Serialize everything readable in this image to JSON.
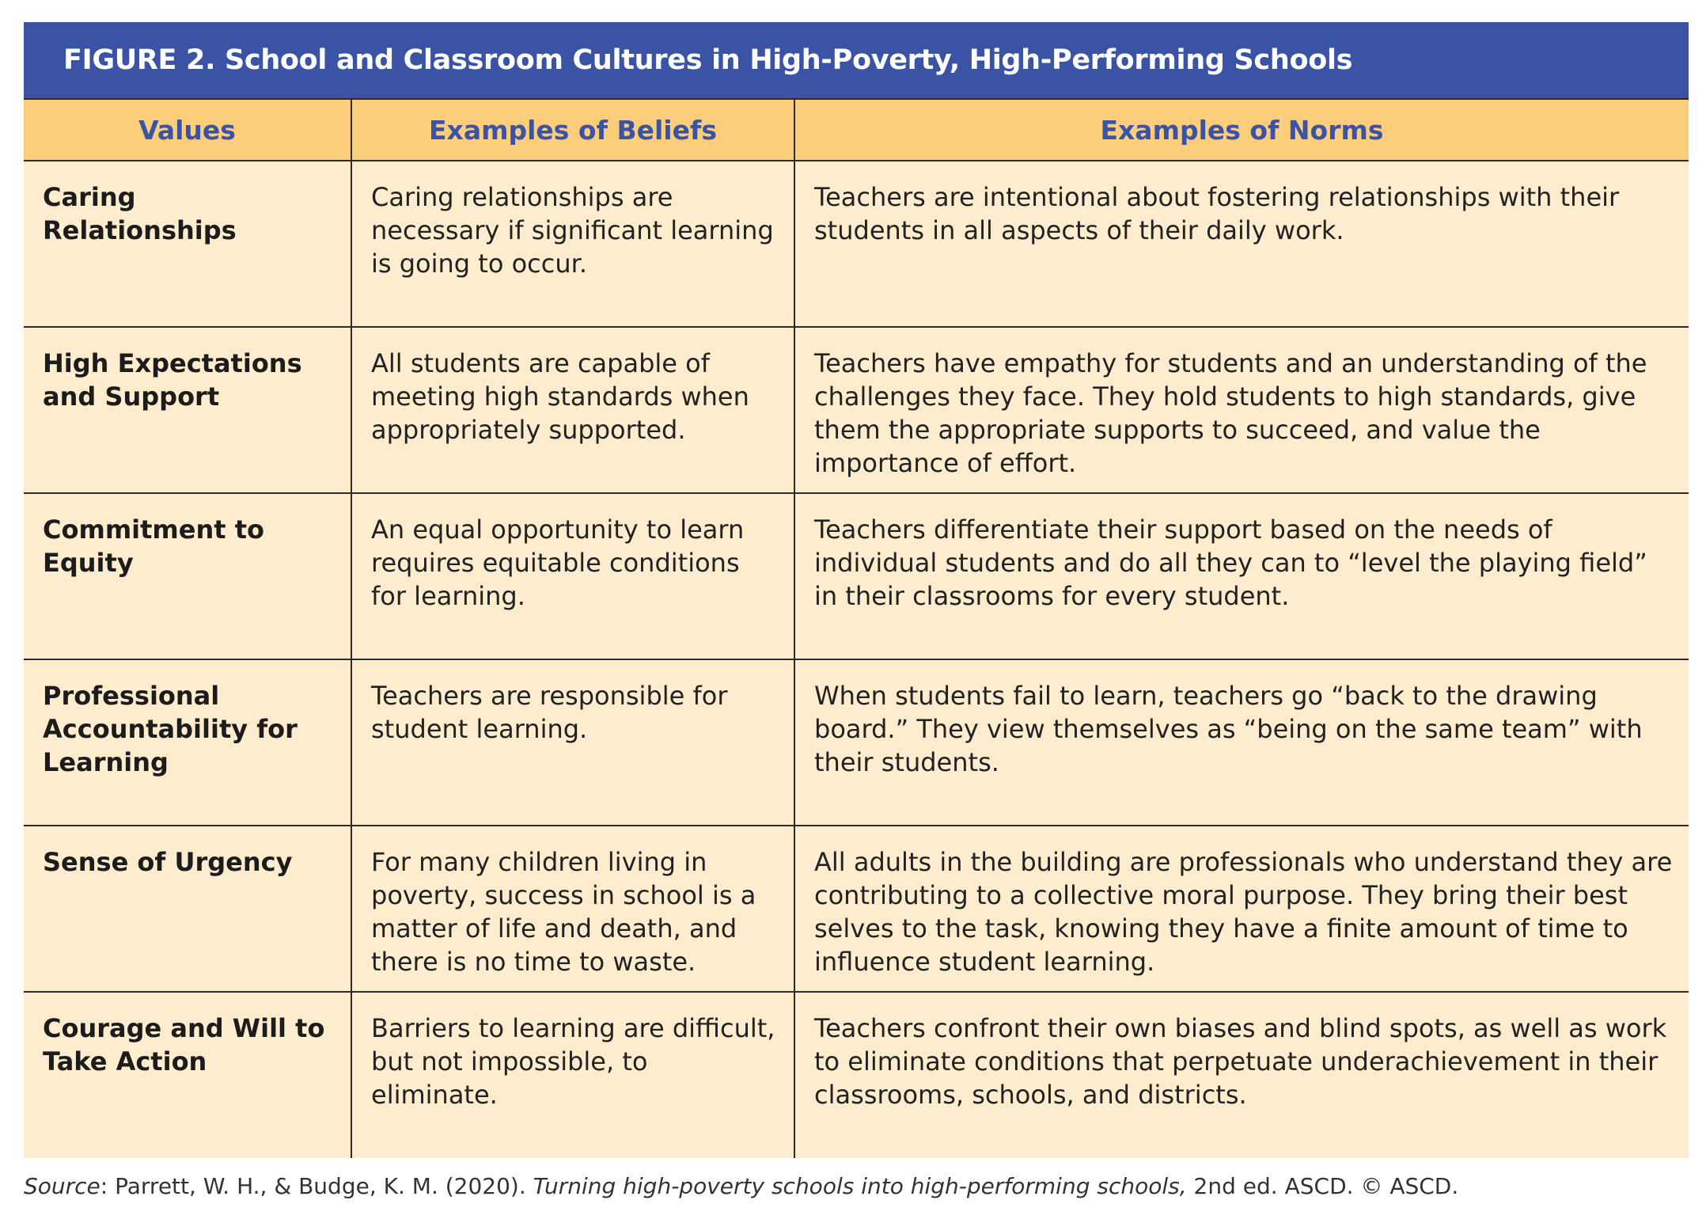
{
  "figure": {
    "title": "FIGURE 2. School and Classroom Cultures in High-Poverty, High-Performing Schools",
    "headers": [
      "Values",
      "Examples of Beliefs",
      "Examples of Norms"
    ],
    "rows": [
      {
        "value": "Caring Relationships",
        "belief": "Caring relationships are necessary if significant learning is going to occur.",
        "norm": "Teachers are intentional about fostering relationships with their students in all aspects of their daily work."
      },
      {
        "value": "High Expectations and Support",
        "belief": "All students are capable of meeting high standards when appropriately supported.",
        "norm": "Teachers have empathy for students and an understanding of the challenges they face. They hold students to high standards, give them the appropriate supports to succeed, and value the importance of effort."
      },
      {
        "value": "Commitment to Equity",
        "belief": "An equal opportunity to learn requires equitable conditions for learning.",
        "norm": "Teachers differentiate their support based on the needs of individual students and do all they can to “level the playing field” in their classrooms for every student."
      },
      {
        "value": "Professional Accountability for Learning",
        "belief": "Teachers are responsible for student learning.",
        "norm": "When students fail to learn, teachers go “back to the drawing board.” They view themselves as “being on the same team” with their students."
      },
      {
        "value": "Sense of Urgency",
        "belief": "For many children living in poverty, success in school is a matter of life and death, and there is no time to waste.",
        "norm": "All adults in the building are professionals who understand they are contributing to a collective moral purpose. They bring their best selves to the task, knowing they have a finite amount of time to influence student learning."
      },
      {
        "value": "Courage and Will to Take Action",
        "belief": "Barriers to learning are difficult, but not impossible, to eliminate.",
        "norm": "Teachers confront their own biases and blind spots, as well as work to eliminate conditions that perpetuate underachievement in their classrooms, schools, and districts."
      }
    ]
  },
  "source": {
    "label": "Source",
    "authors": ": Parrett, W. H., & Budge, K. M. (2020). ",
    "book_title": "Turning high-poverty schools into high-performing schools,",
    "suffix": " 2nd ed. ASCD. © ASCD."
  },
  "colors": {
    "title_bar": "#3a53a4",
    "header_row": "#fccd7a",
    "body_rows": "#fdeccd",
    "header_text": "#3a53a4"
  }
}
